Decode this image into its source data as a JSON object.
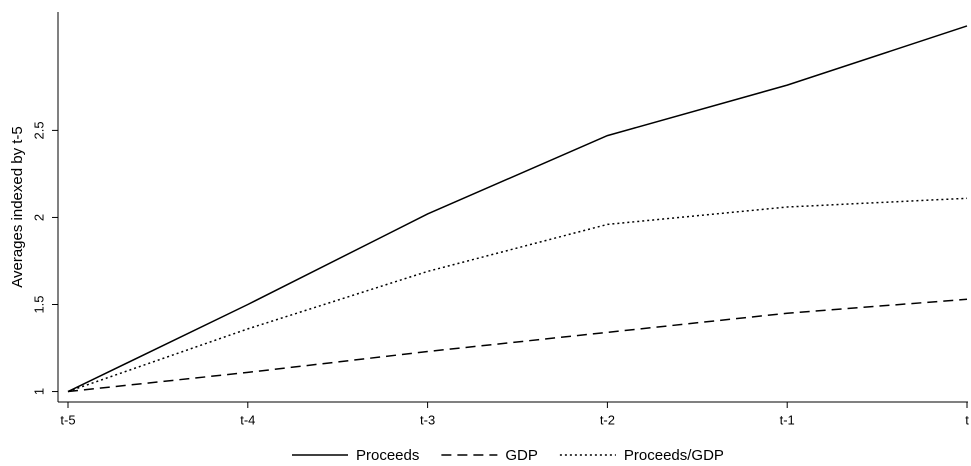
{
  "chart_data": {
    "type": "line",
    "y_label": "Averages indexed by t-5",
    "categories": [
      "t-5",
      "t-4",
      "t-3",
      "t-2",
      "t-1",
      "t"
    ],
    "series": [
      {
        "name": "Proceeds",
        "color": "#000000",
        "dash": "solid",
        "values": [
          1,
          1.5,
          2.02,
          2.47,
          2.76,
          3.1
        ]
      },
      {
        "name": "GDP",
        "color": "#000000",
        "dash": "dashed",
        "values": [
          1,
          1.11,
          1.23,
          1.34,
          1.45,
          1.53
        ]
      },
      {
        "name": "Proceeds/GDP",
        "color": "#000000",
        "dash": "dotted",
        "values": [
          1,
          1.36,
          1.69,
          1.96,
          2.06,
          2.11
        ]
      }
    ],
    "ylim": [
      0.94,
      3.18
    ],
    "yticks": [
      1,
      1.5,
      2,
      2.5
    ],
    "grid": false
  }
}
